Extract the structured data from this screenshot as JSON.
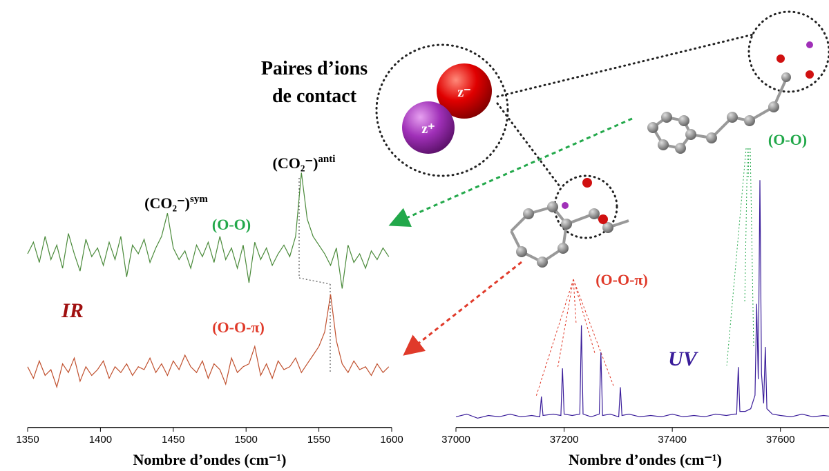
{
  "chart_data": [
    {
      "type": "line",
      "label": "IR",
      "xlabel": "Nombre d’ondes (cm⁻¹)",
      "xlim": [
        1350,
        1600
      ],
      "xticks": [
        1350,
        1400,
        1450,
        1500,
        1550,
        1600
      ],
      "ylim": [
        0,
        100
      ],
      "x": [
        1350,
        1354,
        1358,
        1362,
        1366,
        1370,
        1374,
        1378,
        1382,
        1386,
        1390,
        1394,
        1398,
        1402,
        1406,
        1410,
        1414,
        1418,
        1422,
        1426,
        1430,
        1434,
        1438,
        1442,
        1446,
        1450,
        1454,
        1458,
        1462,
        1466,
        1470,
        1474,
        1478,
        1482,
        1486,
        1490,
        1494,
        1498,
        1502,
        1506,
        1510,
        1514,
        1518,
        1522,
        1526,
        1530,
        1534,
        1538,
        1542,
        1546,
        1550,
        1554,
        1558,
        1562,
        1566,
        1570,
        1574,
        1578,
        1582,
        1586,
        1590,
        1594,
        1598
      ],
      "series": [
        {
          "name": "(O-O)",
          "color": "#4a8a3a",
          "label_color": "#22a84a",
          "values": [
            60,
            64,
            57,
            66,
            58,
            63,
            55,
            67,
            60,
            54,
            65,
            59,
            62,
            56,
            64,
            58,
            66,
            52,
            63,
            60,
            65,
            57,
            62,
            66,
            74,
            62,
            58,
            61,
            55,
            63,
            59,
            64,
            57,
            66,
            58,
            62,
            55,
            63,
            50,
            64,
            58,
            62,
            56,
            60,
            63,
            59,
            66,
            88,
            72,
            66,
            63,
            60,
            56,
            62,
            48,
            63,
            57,
            60,
            55,
            61,
            58,
            62,
            59
          ]
        },
        {
          "name": "(O-O-π)",
          "color": "#c0502e",
          "label_color": "#e03a2a",
          "values": [
            21,
            17,
            23,
            18,
            20,
            14,
            22,
            19,
            24,
            16,
            21,
            18,
            20,
            23,
            17,
            21,
            19,
            22,
            18,
            21,
            20,
            24,
            19,
            22,
            18,
            23,
            20,
            25,
            21,
            19,
            23,
            17,
            22,
            20,
            15,
            24,
            19,
            21,
            22,
            28,
            18,
            22,
            17,
            23,
            20,
            21,
            24,
            19,
            22,
            25,
            28,
            33,
            46,
            30,
            22,
            19,
            23,
            20,
            21,
            18,
            22,
            19,
            21
          ]
        }
      ],
      "annotations": [
        {
          "text": "(CO₂⁻)",
          "superscript": "sym"
        },
        {
          "text": "(CO₂⁻)",
          "superscript": "anti"
        }
      ]
    },
    {
      "type": "line",
      "label": "UV",
      "xlabel": "Nombre d’ondes (cm⁻¹)",
      "xlim": [
        37000,
        37700
      ],
      "xticks": [
        37000,
        37200,
        37400,
        37600
      ],
      "ylim": [
        0,
        100
      ],
      "x": [
        37000,
        37020,
        37040,
        37060,
        37080,
        37100,
        37120,
        37140,
        37155,
        37158,
        37161,
        37180,
        37194,
        37197,
        37200,
        37215,
        37229,
        37232,
        37235,
        37250,
        37265,
        37268,
        37271,
        37285,
        37301,
        37304,
        37307,
        37320,
        37340,
        37360,
        37380,
        37400,
        37420,
        37440,
        37460,
        37480,
        37500,
        37515,
        37519,
        37522,
        37525,
        37535,
        37545,
        37553,
        37556,
        37559,
        37562,
        37565,
        37569,
        37572,
        37575,
        37585,
        37600,
        37620,
        37640,
        37660,
        37680,
        37700
      ],
      "series": [
        {
          "name": "UV",
          "color": "#3a1d9a",
          "values": [
            4,
            5,
            3.5,
            4.5,
            4,
            5,
            4,
            4.5,
            4,
            11.5,
            4.5,
            5,
            4.5,
            22,
            5,
            4.5,
            5,
            38,
            5,
            4,
            5,
            28,
            4.5,
            5,
            4,
            15,
            4.5,
            5,
            4,
            4.5,
            4,
            5,
            4,
            4.5,
            4,
            5,
            4.5,
            5,
            5,
            22.5,
            6,
            6,
            7,
            12,
            46,
            18,
            92,
            20,
            9,
            30,
            7,
            5,
            4.5,
            4,
            5,
            4,
            4.5,
            4
          ]
        }
      ],
      "annotations": [
        {
          "text": "(O-O)",
          "color": "#22a84a"
        },
        {
          "text": "(O-O-π)",
          "color": "#e03a2a"
        }
      ]
    }
  ],
  "header": {
    "lines": [
      "Paires d’ions",
      "de contact"
    ],
    "anion": "z⁻",
    "cation": "z⁺"
  }
}
